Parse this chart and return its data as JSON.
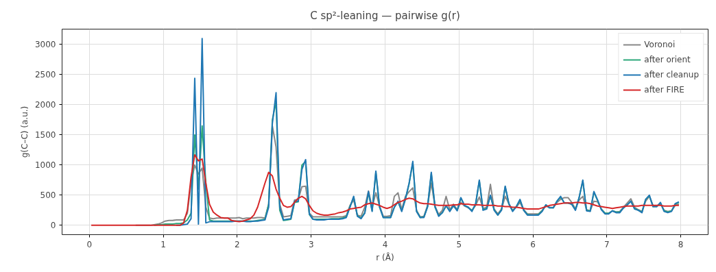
{
  "chart_data": {
    "type": "line",
    "title": "C sp²-leaning — pairwise g(r)",
    "xlabel": "r (Å)",
    "ylabel": "g(C–C) (a.u.)",
    "x": [
      0.025,
      0.225,
      0.425,
      0.625,
      0.825,
      0.875,
      0.925,
      0.975,
      1.025,
      1.075,
      1.125,
      1.175,
      1.225,
      1.275,
      1.325,
      1.375,
      1.425,
      1.475,
      1.525,
      1.575,
      1.625,
      1.675,
      1.725,
      1.775,
      1.825,
      1.875,
      1.925,
      1.975,
      2.025,
      2.075,
      2.125,
      2.175,
      2.225,
      2.275,
      2.325,
      2.375,
      2.425,
      2.475,
      2.525,
      2.575,
      2.625,
      2.675,
      2.725,
      2.775,
      2.825,
      2.875,
      2.925,
      2.975,
      3.025,
      3.075,
      3.125,
      3.175,
      3.225,
      3.275,
      3.325,
      3.375,
      3.425,
      3.475,
      3.525,
      3.575,
      3.625,
      3.675,
      3.725,
      3.775,
      3.825,
      3.875,
      3.925,
      3.975,
      4.025,
      4.075,
      4.125,
      4.175,
      4.225,
      4.275,
      4.325,
      4.375,
      4.425,
      4.475,
      4.525,
      4.575,
      4.625,
      4.675,
      4.725,
      4.775,
      4.825,
      4.875,
      4.925,
      4.975,
      5.025,
      5.075,
      5.125,
      5.175,
      5.225,
      5.275,
      5.325,
      5.375,
      5.425,
      5.475,
      5.525,
      5.575,
      5.625,
      5.675,
      5.725,
      5.775,
      5.825,
      5.875,
      5.925,
      5.975,
      6.025,
      6.075,
      6.125,
      6.175,
      6.225,
      6.275,
      6.325,
      6.375,
      6.425,
      6.475,
      6.525,
      6.575,
      6.625,
      6.675,
      6.725,
      6.775,
      6.825,
      6.875,
      6.925,
      6.975,
      7.025,
      7.075,
      7.125,
      7.175,
      7.225,
      7.275,
      7.325,
      7.375,
      7.425,
      7.475,
      7.525,
      7.575,
      7.625,
      7.675,
      7.725,
      7.775,
      7.825,
      7.875,
      7.925,
      7.975
    ],
    "series": [
      {
        "name": "Voronoi",
        "color": "#888888",
        "values": [
          null,
          null,
          null,
          0,
          0,
          10,
          20,
          40,
          70,
          80,
          80,
          90,
          90,
          90,
          200,
          700,
          1000,
          850,
          950,
          300,
          120,
          110,
          120,
          120,
          120,
          120,
          120,
          120,
          130,
          110,
          120,
          120,
          120,
          130,
          130,
          120,
          350,
          1650,
          1300,
          350,
          140,
          150,
          160,
          420,
          430,
          640,
          650,
          200,
          140,
          140,
          140,
          140,
          140,
          140,
          140,
          140,
          140,
          160,
          330,
          420,
          170,
          150,
          300,
          570,
          300,
          540,
          320,
          150,
          150,
          160,
          480,
          540,
          260,
          480,
          560,
          620,
          250,
          140,
          150,
          330,
          700,
          320,
          180,
          250,
          480,
          260,
          350,
          260,
          380,
          320,
          290,
          250,
          330,
          470,
          280,
          300,
          680,
          270,
          190,
          270,
          480,
          360,
          250,
          300,
          380,
          260,
          190,
          190,
          190,
          190,
          250,
          320,
          300,
          290,
          380,
          430,
          460,
          460,
          380,
          270,
          420,
          480,
          260,
          240,
          400,
          390,
          270,
          200,
          200,
          240,
          220,
          230,
          300,
          370,
          440,
          300,
          260,
          230,
          400,
          480,
          330,
          320,
          360,
          250,
          230,
          240,
          330,
          350
        ]
      },
      {
        "name": "after orient",
        "color": "#2ca87a",
        "values": [
          null,
          null,
          null,
          null,
          null,
          0,
          10,
          10,
          20,
          20,
          20,
          30,
          30,
          40,
          90,
          200,
          1500,
          600,
          1650,
          700,
          90,
          70,
          70,
          70,
          70,
          70,
          70,
          70,
          70,
          70,
          70,
          70,
          70,
          80,
          90,
          100,
          350,
          1750,
          2050,
          250,
          80,
          90,
          100,
          380,
          390,
          1000,
          1060,
          180,
          100,
          100,
          100,
          100,
          100,
          110,
          110,
          110,
          120,
          140,
          310,
          470,
          160,
          120,
          210,
          540,
          240,
          880,
          300,
          130,
          130,
          130,
          300,
          390,
          240,
          430,
          690,
          1040,
          240,
          130,
          140,
          310,
          860,
          300,
          160,
          210,
          320,
          240,
          320,
          250,
          450,
          330,
          300,
          240,
          350,
          740,
          260,
          280,
          490,
          260,
          170,
          260,
          640,
          350,
          240,
          310,
          420,
          250,
          180,
          170,
          170,
          180,
          240,
          340,
          290,
          290,
          400,
          470,
          370,
          370,
          350,
          260,
          460,
          740,
          250,
          240,
          550,
          410,
          270,
          200,
          200,
          240,
          220,
          220,
          290,
          340,
          400,
          280,
          250,
          220,
          430,
          490,
          310,
          310,
          370,
          240,
          220,
          240,
          350,
          380
        ]
      },
      {
        "name": "after cleanup",
        "color": "#1f77b4",
        "values": [
          null,
          null,
          null,
          null,
          null,
          null,
          null,
          null,
          null,
          null,
          null,
          0,
          0,
          10,
          20,
          110,
          2440,
          20,
          3100,
          40,
          60,
          60,
          60,
          60,
          60,
          60,
          60,
          70,
          70,
          70,
          60,
          60,
          70,
          70,
          80,
          90,
          300,
          1690,
          2200,
          300,
          90,
          100,
          110,
          400,
          400,
          930,
          1090,
          190,
          100,
          90,
          90,
          90,
          100,
          100,
          100,
          100,
          110,
          130,
          300,
          480,
          150,
          110,
          200,
          560,
          230,
          900,
          310,
          130,
          130,
          130,
          300,
          400,
          230,
          440,
          700,
          1060,
          230,
          130,
          130,
          310,
          880,
          310,
          150,
          210,
          330,
          230,
          330,
          240,
          460,
          330,
          300,
          230,
          360,
          750,
          250,
          270,
          500,
          250,
          170,
          250,
          650,
          360,
          230,
          310,
          430,
          250,
          170,
          170,
          170,
          170,
          230,
          340,
          290,
          290,
          400,
          480,
          370,
          370,
          350,
          250,
          460,
          750,
          240,
          230,
          560,
          420,
          260,
          190,
          190,
          240,
          210,
          210,
          290,
          340,
          400,
          270,
          250,
          210,
          430,
          500,
          310,
          310,
          380,
          230,
          210,
          230,
          360,
          390
        ]
      },
      {
        "name": "after FIRE",
        "color": "#d62728",
        "values": [
          0,
          0,
          0,
          0,
          0,
          0,
          0,
          0,
          0,
          0,
          0,
          0,
          0,
          40,
          250,
          800,
          1170,
          1070,
          1100,
          700,
          350,
          220,
          170,
          130,
          120,
          120,
          80,
          70,
          60,
          70,
          90,
          110,
          170,
          300,
          500,
          700,
          880,
          820,
          600,
          450,
          330,
          300,
          310,
          380,
          450,
          480,
          440,
          330,
          240,
          200,
          180,
          170,
          170,
          180,
          190,
          210,
          220,
          240,
          270,
          280,
          290,
          300,
          340,
          360,
          370,
          350,
          330,
          300,
          280,
          300,
          340,
          380,
          400,
          430,
          450,
          440,
          400,
          370,
          360,
          360,
          350,
          340,
          330,
          330,
          330,
          330,
          340,
          340,
          360,
          350,
          350,
          340,
          340,
          340,
          330,
          330,
          330,
          330,
          320,
          320,
          310,
          310,
          300,
          300,
          290,
          280,
          270,
          270,
          270,
          270,
          290,
          310,
          330,
          340,
          350,
          360,
          370,
          370,
          370,
          380,
          380,
          370,
          370,
          360,
          340,
          320,
          310,
          300,
          290,
          280,
          290,
          300,
          310,
          320,
          320,
          320,
          320,
          330,
          330,
          330,
          330,
          330,
          330,
          320,
          320,
          320,
          330,
          330
        ]
      }
    ],
    "xlim": [
      -0.37,
      8.37
    ],
    "ylim": [
      -155,
      3255
    ],
    "xticks": [
      0,
      1,
      2,
      3,
      4,
      5,
      6,
      7,
      8
    ],
    "yticks": [
      0,
      500,
      1000,
      1500,
      2000,
      2500,
      3000
    ],
    "grid": true,
    "legend": "top right",
    "line_style": "solid",
    "marker": "none"
  }
}
